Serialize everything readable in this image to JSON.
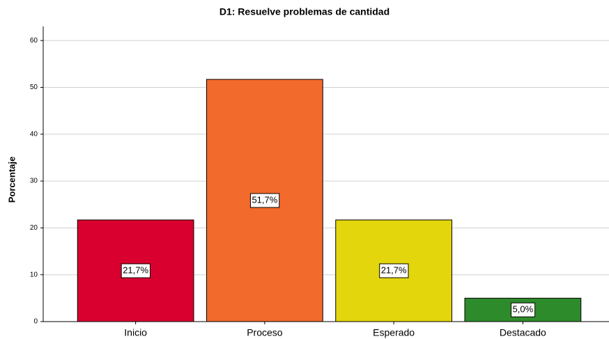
{
  "chart_data": {
    "type": "bar",
    "title": "D1: Resuelve problemas de cantidad",
    "y_label": "Porcentaje",
    "categories": [
      "Inicio",
      "Proceso",
      "Esperado",
      "Destacado"
    ],
    "values": [
      21.7,
      51.7,
      21.7,
      5.0
    ],
    "value_labels": [
      "21,7%",
      "51,7%",
      "21,7%",
      "5,0%"
    ],
    "colors": [
      "#d9002f",
      "#f26a2c",
      "#e3d60d",
      "#2e8b2b"
    ],
    "ylim": [
      0,
      63
    ],
    "yticks": [
      0,
      10,
      20,
      30,
      40,
      50,
      60
    ],
    "grid": true
  }
}
